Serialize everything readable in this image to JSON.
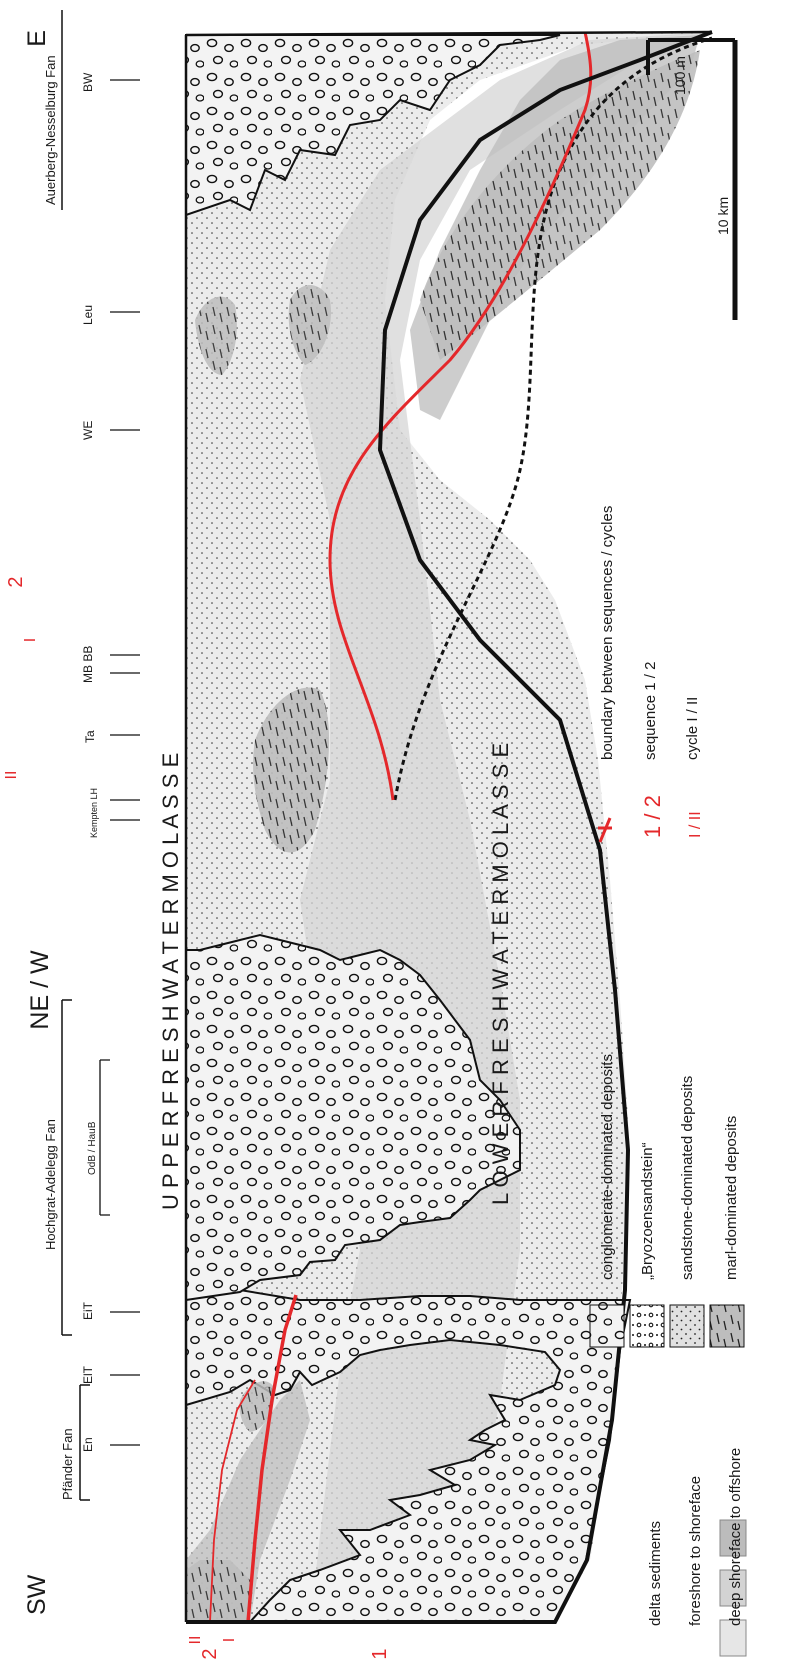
{
  "orientation": {
    "sw": "SW",
    "ne_w": "NE / W",
    "e": "E"
  },
  "fans": {
    "pfaender": "Pfänder Fan",
    "hochgrat": "Hochgrat-Adelegg Fan",
    "auerberg": "Auerberg-Nesselburg Fan",
    "hochgrat_inner": "OdB / HauB"
  },
  "localities": {
    "en": "En",
    "elt": "ElT",
    "eit": "EiT",
    "kempten_lh": "Kempten LH",
    "ta": "Ta",
    "mb_bb": "MB BB",
    "we": "WE",
    "leu": "Leu",
    "bw": "BW"
  },
  "units": {
    "upper": "U P P E R     F R E S H W A T E R     M O L A S S E",
    "lower": "L O W E R     F R E S H W A T E R     M O L A S S E"
  },
  "boundary_marks": {
    "left_II": "II",
    "left_I": "I",
    "left_2": "2",
    "left_1": "1",
    "right_II": "II",
    "right_2": "2",
    "right_I": "I"
  },
  "scale": {
    "vertical": "100 m",
    "horizontal": "10 km"
  },
  "legend": {
    "environments": [
      {
        "label": "delta sediments",
        "color": "#e6e6e6"
      },
      {
        "label": "foreshore to shoreface",
        "color": "#d3d3d3"
      },
      {
        "label": "deep shoreface to offshore",
        "color": "#bcbcbc"
      }
    ],
    "lithology": [
      {
        "label": "conglomerate-dominated deposits"
      },
      {
        "label": "„Bryozoensandstein“"
      },
      {
        "label": "sandstone-dominated deposits"
      },
      {
        "label": "marl-dominated deposits"
      }
    ],
    "symbols": [
      {
        "mark": "",
        "label": "boundary between sequences / cycles"
      },
      {
        "mark": "1 / 2",
        "label": "sequence 1 / 2"
      },
      {
        "mark": "I / II",
        "label": "cycle I / II"
      }
    ]
  },
  "colors": {
    "boundary": "#e4282b",
    "delta": "#e6e6e6",
    "shoreface": "#d3d3d3",
    "offshore": "#bcbcbc",
    "outline": "#111111"
  }
}
